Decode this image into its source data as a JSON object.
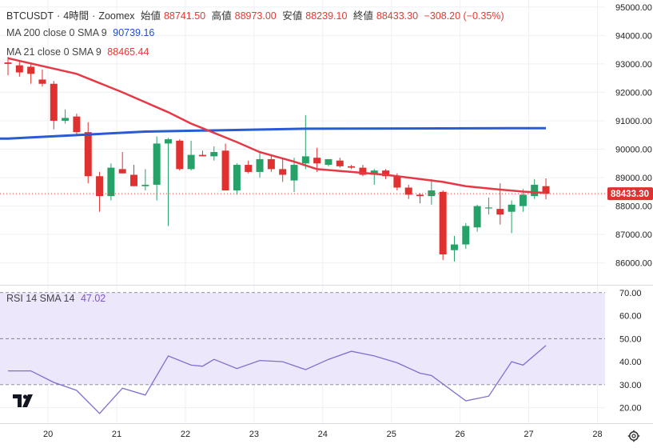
{
  "header": {
    "symbol": "BTCUSDT",
    "interval": "4時間",
    "exchange": "Zoomex",
    "open_label": "始値",
    "open": "88741.50",
    "high_label": "高値",
    "high": "88973.00",
    "low_label": "安値",
    "low": "88239.10",
    "close_label": "終値",
    "close": "88433.30",
    "change": "−308.20 (−0.35%)"
  },
  "ma200": {
    "label": "MA 200 close 0 SMA 9",
    "value": "90739.16"
  },
  "ma21": {
    "label": "MA 21 close 0 SMA 9",
    "value": "88465.44"
  },
  "rsi": {
    "label": "RSI 14 SMA 14",
    "value": "47.02"
  },
  "colors": {
    "up": "#26a269",
    "down": "#e03131",
    "ma200": "#2a5bd7",
    "ma21": "#e53945",
    "rsi": "#7e6fd0",
    "rsi_band": "#ece7fb"
  },
  "icons": [
    "tradingview-logo-icon",
    "gear-icon"
  ],
  "chart_data": [
    {
      "type": "candlestick",
      "title": "BTCUSDT 4時間 Zoomex",
      "x_ticks": [
        {
          "label": "20",
          "index": 3.5
        },
        {
          "label": "21",
          "index": 9.5
        },
        {
          "label": "22",
          "index": 15.5
        },
        {
          "label": "23",
          "index": 21.5
        },
        {
          "label": "24",
          "index": 27.5
        },
        {
          "label": "25",
          "index": 33.5
        },
        {
          "label": "26",
          "index": 39.5
        },
        {
          "label": "27",
          "index": 45.5
        },
        {
          "label": "28",
          "index": 51.5
        }
      ],
      "ylim": [
        85400,
        95050
      ],
      "y_ticks": [
        "95000.00",
        "94000.00",
        "93000.00",
        "92000.00",
        "91000.00",
        "90000.00",
        "89000.00",
        "88000.00",
        "87000.00",
        "86000.00"
      ],
      "last_price_label": "88433.30",
      "last_price": 88433.3,
      "candles": [
        {
          "o": 93050,
          "h": 93250,
          "l": 92600,
          "c": 93000
        },
        {
          "o": 92950,
          "h": 93100,
          "l": 92550,
          "c": 92700
        },
        {
          "o": 92900,
          "h": 93050,
          "l": 92300,
          "c": 92650
        },
        {
          "o": 92450,
          "h": 92800,
          "l": 92200,
          "c": 92300
        },
        {
          "o": 92300,
          "h": 92400,
          "l": 90700,
          "c": 91000
        },
        {
          "o": 91000,
          "h": 91400,
          "l": 90900,
          "c": 91100
        },
        {
          "o": 91150,
          "h": 91250,
          "l": 90500,
          "c": 90600
        },
        {
          "o": 90600,
          "h": 90950,
          "l": 88800,
          "c": 89050
        },
        {
          "o": 89050,
          "h": 89200,
          "l": 87800,
          "c": 88350
        },
        {
          "o": 88350,
          "h": 89500,
          "l": 88200,
          "c": 89350
        },
        {
          "o": 89300,
          "h": 89900,
          "l": 89150,
          "c": 89150
        },
        {
          "o": 89100,
          "h": 89450,
          "l": 88700,
          "c": 88700
        },
        {
          "o": 88700,
          "h": 89300,
          "l": 88550,
          "c": 88750
        },
        {
          "o": 88750,
          "h": 90450,
          "l": 88200,
          "c": 90200
        },
        {
          "o": 90200,
          "h": 90400,
          "l": 87300,
          "c": 90350
        },
        {
          "o": 90300,
          "h": 90350,
          "l": 89250,
          "c": 89300
        },
        {
          "o": 89300,
          "h": 90300,
          "l": 89250,
          "c": 89800
        },
        {
          "o": 89800,
          "h": 89950,
          "l": 89750,
          "c": 89750
        },
        {
          "o": 89750,
          "h": 90100,
          "l": 89600,
          "c": 89900
        },
        {
          "o": 89950,
          "h": 90200,
          "l": 88550,
          "c": 88550
        },
        {
          "o": 88550,
          "h": 89500,
          "l": 88400,
          "c": 89450
        },
        {
          "o": 89450,
          "h": 89600,
          "l": 89150,
          "c": 89200
        },
        {
          "o": 89200,
          "h": 89900,
          "l": 89000,
          "c": 89650
        },
        {
          "o": 89650,
          "h": 89800,
          "l": 89200,
          "c": 89300
        },
        {
          "o": 89300,
          "h": 89650,
          "l": 88850,
          "c": 89100
        },
        {
          "o": 88900,
          "h": 89700,
          "l": 88500,
          "c": 89450
        },
        {
          "o": 89500,
          "h": 91200,
          "l": 89300,
          "c": 89750
        },
        {
          "o": 89700,
          "h": 90050,
          "l": 89200,
          "c": 89500
        },
        {
          "o": 89450,
          "h": 89600,
          "l": 89400,
          "c": 89650
        },
        {
          "o": 89600,
          "h": 89700,
          "l": 89350,
          "c": 89400
        },
        {
          "o": 89400,
          "h": 89450,
          "l": 89300,
          "c": 89350
        },
        {
          "o": 89350,
          "h": 89450,
          "l": 89050,
          "c": 89100
        },
        {
          "o": 89100,
          "h": 89300,
          "l": 88750,
          "c": 89250
        },
        {
          "o": 89250,
          "h": 89300,
          "l": 88950,
          "c": 89050
        },
        {
          "o": 89050,
          "h": 89150,
          "l": 88550,
          "c": 88650
        },
        {
          "o": 88650,
          "h": 88750,
          "l": 88250,
          "c": 88400
        },
        {
          "o": 88400,
          "h": 88450,
          "l": 88100,
          "c": 88350
        },
        {
          "o": 88350,
          "h": 88950,
          "l": 88050,
          "c": 88550
        },
        {
          "o": 88500,
          "h": 88550,
          "l": 86100,
          "c": 86300
        },
        {
          "o": 86450,
          "h": 86950,
          "l": 86050,
          "c": 86650
        },
        {
          "o": 86650,
          "h": 87400,
          "l": 86500,
          "c": 87300
        },
        {
          "o": 87250,
          "h": 88050,
          "l": 87100,
          "c": 88000
        },
        {
          "o": 87950,
          "h": 88300,
          "l": 87700,
          "c": 87950
        },
        {
          "o": 87900,
          "h": 88800,
          "l": 87350,
          "c": 87700
        },
        {
          "o": 87800,
          "h": 88200,
          "l": 87050,
          "c": 88050
        },
        {
          "o": 88000,
          "h": 88600,
          "l": 87800,
          "c": 88400
        },
        {
          "o": 88350,
          "h": 88950,
          "l": 88250,
          "c": 88750
        },
        {
          "o": 88700,
          "h": 88973,
          "l": 88239,
          "c": 88433
        }
      ],
      "series": [
        {
          "name": "MA 200 close 0 SMA 9",
          "x": [
            0,
            12,
            26,
            47
          ],
          "values": [
            90370,
            90620,
            90720,
            90739
          ]
        },
        {
          "name": "MA 21 close 0 SMA 9",
          "x": [
            0,
            6,
            10,
            14,
            16,
            20,
            22,
            25,
            27,
            30,
            33,
            35,
            38,
            40,
            43,
            45,
            47
          ],
          "values": [
            93200,
            92650,
            92000,
            91300,
            90900,
            90250,
            89900,
            89560,
            89300,
            89200,
            89100,
            89000,
            88850,
            88700,
            88580,
            88510,
            88465
          ]
        }
      ]
    },
    {
      "type": "line",
      "title": "RSI 14 SMA 14",
      "ylim": [
        15,
        72
      ],
      "y_ticks": [
        "70.00",
        "60.00",
        "50.00",
        "40.00",
        "30.00",
        "20.00"
      ],
      "band": [
        30,
        70
      ],
      "dashed_levels": [
        30,
        50,
        70
      ],
      "series": [
        {
          "name": "RSI 14",
          "x": [
            0,
            2,
            4,
            6,
            8,
            10,
            12,
            14,
            16,
            17,
            18,
            20,
            22,
            24,
            26,
            28,
            30,
            32,
            34,
            36,
            37,
            40,
            42,
            44,
            45,
            47
          ],
          "values": [
            36,
            36,
            31,
            27.5,
            17.5,
            28.5,
            25.5,
            42.5,
            38.5,
            38,
            41,
            37,
            40.5,
            40,
            36.5,
            41,
            44.5,
            42.5,
            39.5,
            35,
            34,
            23,
            25,
            40,
            38.5,
            47
          ]
        }
      ]
    }
  ]
}
